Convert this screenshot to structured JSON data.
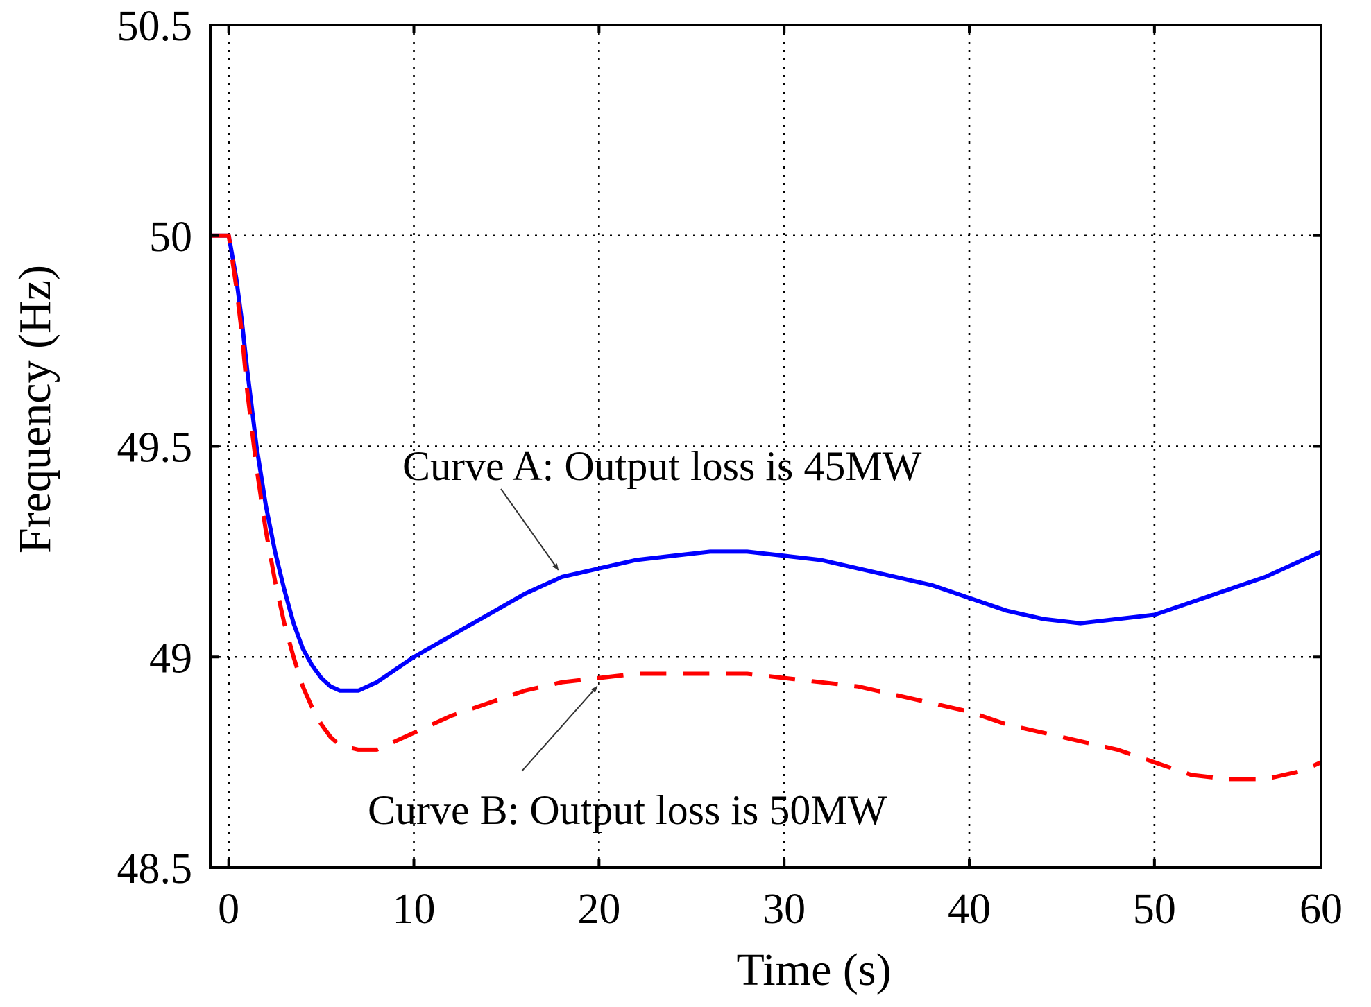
{
  "chart_data": {
    "type": "line",
    "title": "",
    "xlabel": "Time (s)",
    "ylabel": "Frequency (Hz)",
    "xlim": [
      -1,
      59
    ],
    "ylim": [
      48.5,
      50.5
    ],
    "xticks": [
      0,
      10,
      20,
      30,
      40,
      50,
      60
    ],
    "yticks": [
      48.5,
      49,
      49.5,
      50,
      50.5
    ],
    "xtick_labels": [
      "0",
      "10",
      "20",
      "30",
      "40",
      "50",
      "60"
    ],
    "ytick_labels": [
      "48.5",
      "49",
      "49.5",
      "50",
      "50.5"
    ],
    "grid": true,
    "legend": "none",
    "series": [
      {
        "name": "Curve A",
        "color": "#0000ff",
        "style": "solid",
        "x": [
          -1,
          0,
          0.4,
          0.7,
          1,
          1.5,
          2,
          2.5,
          3,
          3.5,
          4,
          4.5,
          5,
          5.5,
          6,
          7,
          8,
          9,
          10,
          12,
          14,
          16,
          18,
          20,
          22,
          24,
          26,
          28,
          30,
          32,
          34,
          36,
          38,
          40,
          42,
          44,
          46,
          48,
          50,
          52,
          54,
          56,
          58,
          59
        ],
        "y": [
          50,
          50,
          49.9,
          49.8,
          49.68,
          49.5,
          49.36,
          49.25,
          49.16,
          49.08,
          49.02,
          48.98,
          48.95,
          48.93,
          48.92,
          48.92,
          48.94,
          48.97,
          49,
          49.05,
          49.1,
          49.15,
          49.19,
          49.21,
          49.23,
          49.24,
          49.25,
          49.25,
          49.24,
          49.23,
          49.21,
          49.19,
          49.17,
          49.14,
          49.11,
          49.09,
          49.08,
          49.09,
          49.1,
          49.13,
          49.16,
          49.19,
          49.23,
          49.25
        ]
      },
      {
        "name": "Curve B",
        "color": "#ff0000",
        "style": "dashed",
        "x": [
          -1,
          0,
          0.4,
          0.7,
          1,
          1.5,
          2,
          2.5,
          3,
          3.5,
          4,
          4.5,
          5,
          5.5,
          6,
          7,
          8,
          9,
          10,
          12,
          14,
          16,
          18,
          20,
          22,
          24,
          26,
          28,
          30,
          32,
          34,
          36,
          38,
          40,
          42,
          44,
          46,
          48,
          50,
          52,
          54,
          56,
          58,
          59
        ],
        "y": [
          50,
          50,
          49.88,
          49.77,
          49.63,
          49.45,
          49.3,
          49.18,
          49.08,
          49,
          48.93,
          48.88,
          48.84,
          48.81,
          48.79,
          48.78,
          48.78,
          48.8,
          48.82,
          48.86,
          48.89,
          48.92,
          48.94,
          48.95,
          48.96,
          48.96,
          48.96,
          48.96,
          48.95,
          48.94,
          48.93,
          48.91,
          48.89,
          48.87,
          48.84,
          48.82,
          48.8,
          48.78,
          48.75,
          48.72,
          48.71,
          48.71,
          48.73,
          48.75
        ]
      }
    ],
    "annotations": [
      {
        "name": "annotation-curve-a",
        "text": "Curve A: Output loss is 45MW",
        "point_x": 17.8,
        "point_y": 49.2
      },
      {
        "name": "annotation-curve-b",
        "text": "Curve B: Output loss is 50MW",
        "point_x": 19.9,
        "point_y": 48.94
      }
    ]
  }
}
